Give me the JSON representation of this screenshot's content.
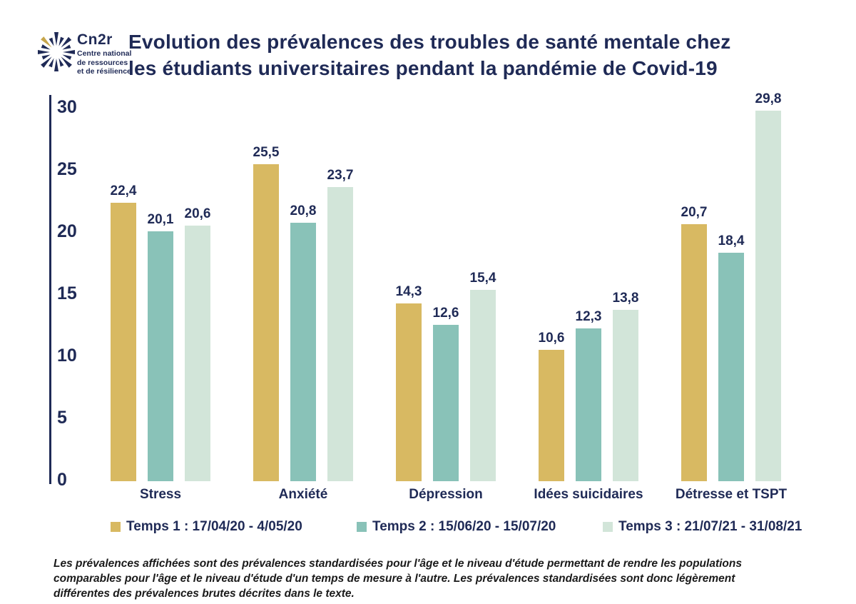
{
  "header": {
    "logo": {
      "brand": "Cn2r",
      "subtitle": "Centre national\nde ressources\net de résilience"
    },
    "title": "Evolution des prévalences des troubles de santé mentale chez\nles étudiants universitaires pendant la pandémie de Covid-19"
  },
  "colors": {
    "navy": "#1f2a56",
    "gold": "#d8b962",
    "teal": "#89c2b8",
    "mint": "#d2e5d9",
    "logo_gold_ray": "#c7a64b",
    "footnote_text": "#1a1a1a"
  },
  "chart_data": {
    "type": "bar",
    "title": "Evolution des prévalences des troubles de santé mentale chez les étudiants universitaires pendant la pandémie de Covid-19",
    "categories": [
      "Stress",
      "Anxiété",
      "Dépression",
      "Idées suicidaires",
      "Détresse et TSPT"
    ],
    "series": [
      {
        "name": "Temps 1 : 17/04/20 - 4/05/20",
        "color": "#d8b962",
        "values": [
          22.4,
          25.5,
          14.3,
          10.6,
          20.7
        ]
      },
      {
        "name": "Temps 2 : 15/06/20 - 15/07/20",
        "color": "#89c2b8",
        "values": [
          20.1,
          20.8,
          12.6,
          12.3,
          18.4
        ]
      },
      {
        "name": "Temps 3 : 21/07/21 - 31/08/21",
        "color": "#d2e5d9",
        "values": [
          20.6,
          23.7,
          15.4,
          13.8,
          29.8
        ]
      }
    ],
    "yticks": [
      30,
      25,
      20,
      15,
      10,
      5,
      0
    ],
    "ylim": [
      0,
      30
    ],
    "grid": false,
    "data_labels": true,
    "value_decimal_separator": ",",
    "legend_position": "bottom",
    "xlabel": "",
    "ylabel": ""
  },
  "footnote": "Les prévalences affichées sont des prévalences standardisées pour l'âge et le niveau d'étude permettant de rendre les populations\ncomparables pour l'âge et le niveau d'étude d'un temps de mesure à l'autre. Les prévalences standardisées sont donc légèrement\ndifférentes des prévalences brutes décrites dans le texte."
}
